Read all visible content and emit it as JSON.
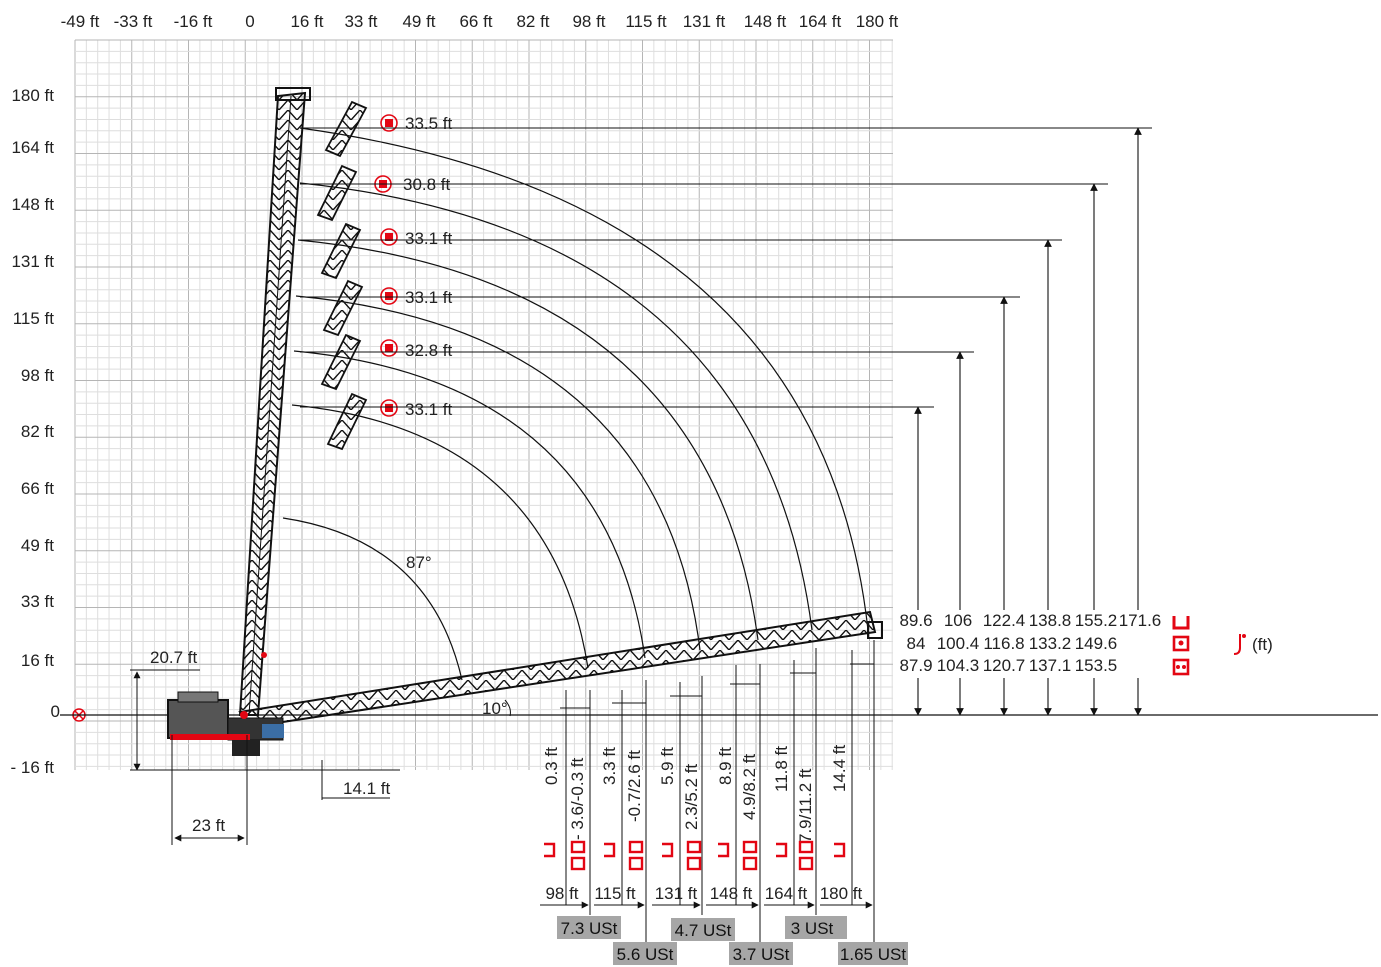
{
  "colors": {
    "accent": "#e30613",
    "line": "#111111",
    "grid": "#c8c8c8",
    "badge": "#a6a6a6"
  },
  "x_ticks": [
    "-49 ft",
    "-33 ft",
    "-16 ft",
    "0",
    "16 ft",
    "33 ft",
    "49 ft",
    "66 ft",
    "82 ft",
    "98 ft",
    "115 ft",
    "131 ft",
    "148 ft",
    "164 ft",
    "180 ft"
  ],
  "y_ticks": [
    "180 ft",
    "164 ft",
    "148 ft",
    "131 ft",
    "115 ft",
    "98 ft",
    "82 ft",
    "66 ft",
    "49 ft",
    "33 ft",
    "16 ft",
    "0",
    "- 16 ft"
  ],
  "jib_lengths": [
    "33.5 ft",
    "30.8 ft",
    "33.1 ft",
    "33.1 ft",
    "32.8 ft",
    "33.1 ft"
  ],
  "angles": {
    "luffing": "87°",
    "boom": "10°"
  },
  "dimensions": {
    "height_left": "20.7 ft",
    "tail_radius": "23 ft",
    "front_offset": "14.1 ft"
  },
  "hook_heights": {
    "unit_label": "(ft)",
    "row1": [
      "89.6",
      "106",
      "122.4",
      "138.8",
      "155.2",
      "171.6"
    ],
    "row2": [
      "84",
      "100.4",
      "116.8",
      "133.2",
      "149.6"
    ],
    "row3": [
      "87.9",
      "104.3",
      "120.7",
      "137.1",
      "153.5"
    ]
  },
  "radius_values": [
    {
      "a": "0.3 ft",
      "b": "- 3.6/-0.3 ft"
    },
    {
      "a": "3.3 ft",
      "b": "-0.7/2.6 ft"
    },
    {
      "a": "5.9 ft",
      "b": "2.3/5.2 ft"
    },
    {
      "a": "8.9 ft",
      "b": "4.9/8.2 ft"
    },
    {
      "a": "11.8 ft",
      "b": "7.9/11.2 ft"
    },
    {
      "a": "14.4 ft",
      "b": ""
    }
  ],
  "boom_lengths": [
    "98 ft",
    "115 ft",
    "131 ft",
    "148 ft",
    "164 ft",
    "180 ft"
  ],
  "loads": [
    "7.3 USt",
    "5.6 USt",
    "4.7 USt",
    "3.7 USt",
    "3 USt",
    "1.65 USt"
  ]
}
